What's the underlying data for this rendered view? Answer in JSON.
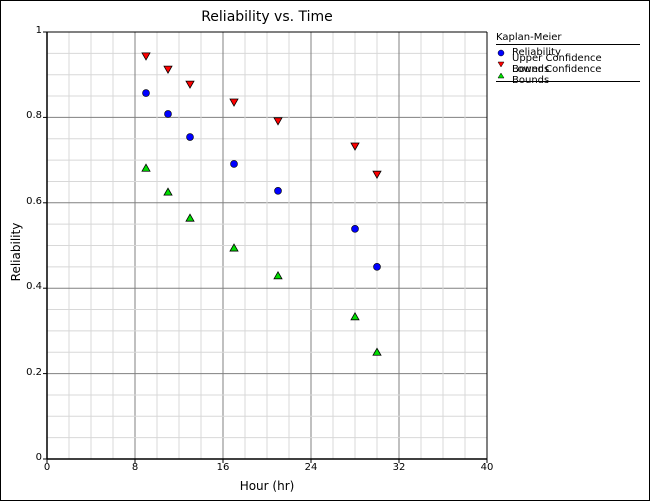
{
  "chart_data": {
    "type": "scatter",
    "title": "Reliability vs. Time",
    "xlabel": "Hour (hr)",
    "ylabel": "Reliability",
    "xlim": [
      0,
      40
    ],
    "ylim": [
      0,
      1
    ],
    "x_ticks": [
      "0",
      "8",
      "16",
      "24",
      "32",
      "40"
    ],
    "y_ticks": [
      "0",
      "0.2",
      "0.4",
      "0.6",
      "0.8",
      "1"
    ],
    "grid": true,
    "legend_position": "right",
    "legend_title": "Kaplan-Meier",
    "x": [
      9,
      11,
      13,
      17,
      21,
      28,
      30
    ],
    "series": [
      {
        "name": "Reliability",
        "marker": "circle",
        "color": "#0000ff",
        "values": [
          0.857,
          0.808,
          0.754,
          0.691,
          0.628,
          0.539,
          0.45
        ]
      },
      {
        "name": "Upper Confidence Bounds",
        "marker": "triangle-down",
        "color": "#ff0000",
        "values": [
          0.944,
          0.913,
          0.878,
          0.836,
          0.792,
          0.733,
          0.667
        ]
      },
      {
        "name": "Lower Confidence Bounds",
        "marker": "triangle-up",
        "color": "#00dd00",
        "values": [
          0.681,
          0.625,
          0.564,
          0.494,
          0.429,
          0.333,
          0.25
        ]
      }
    ]
  }
}
